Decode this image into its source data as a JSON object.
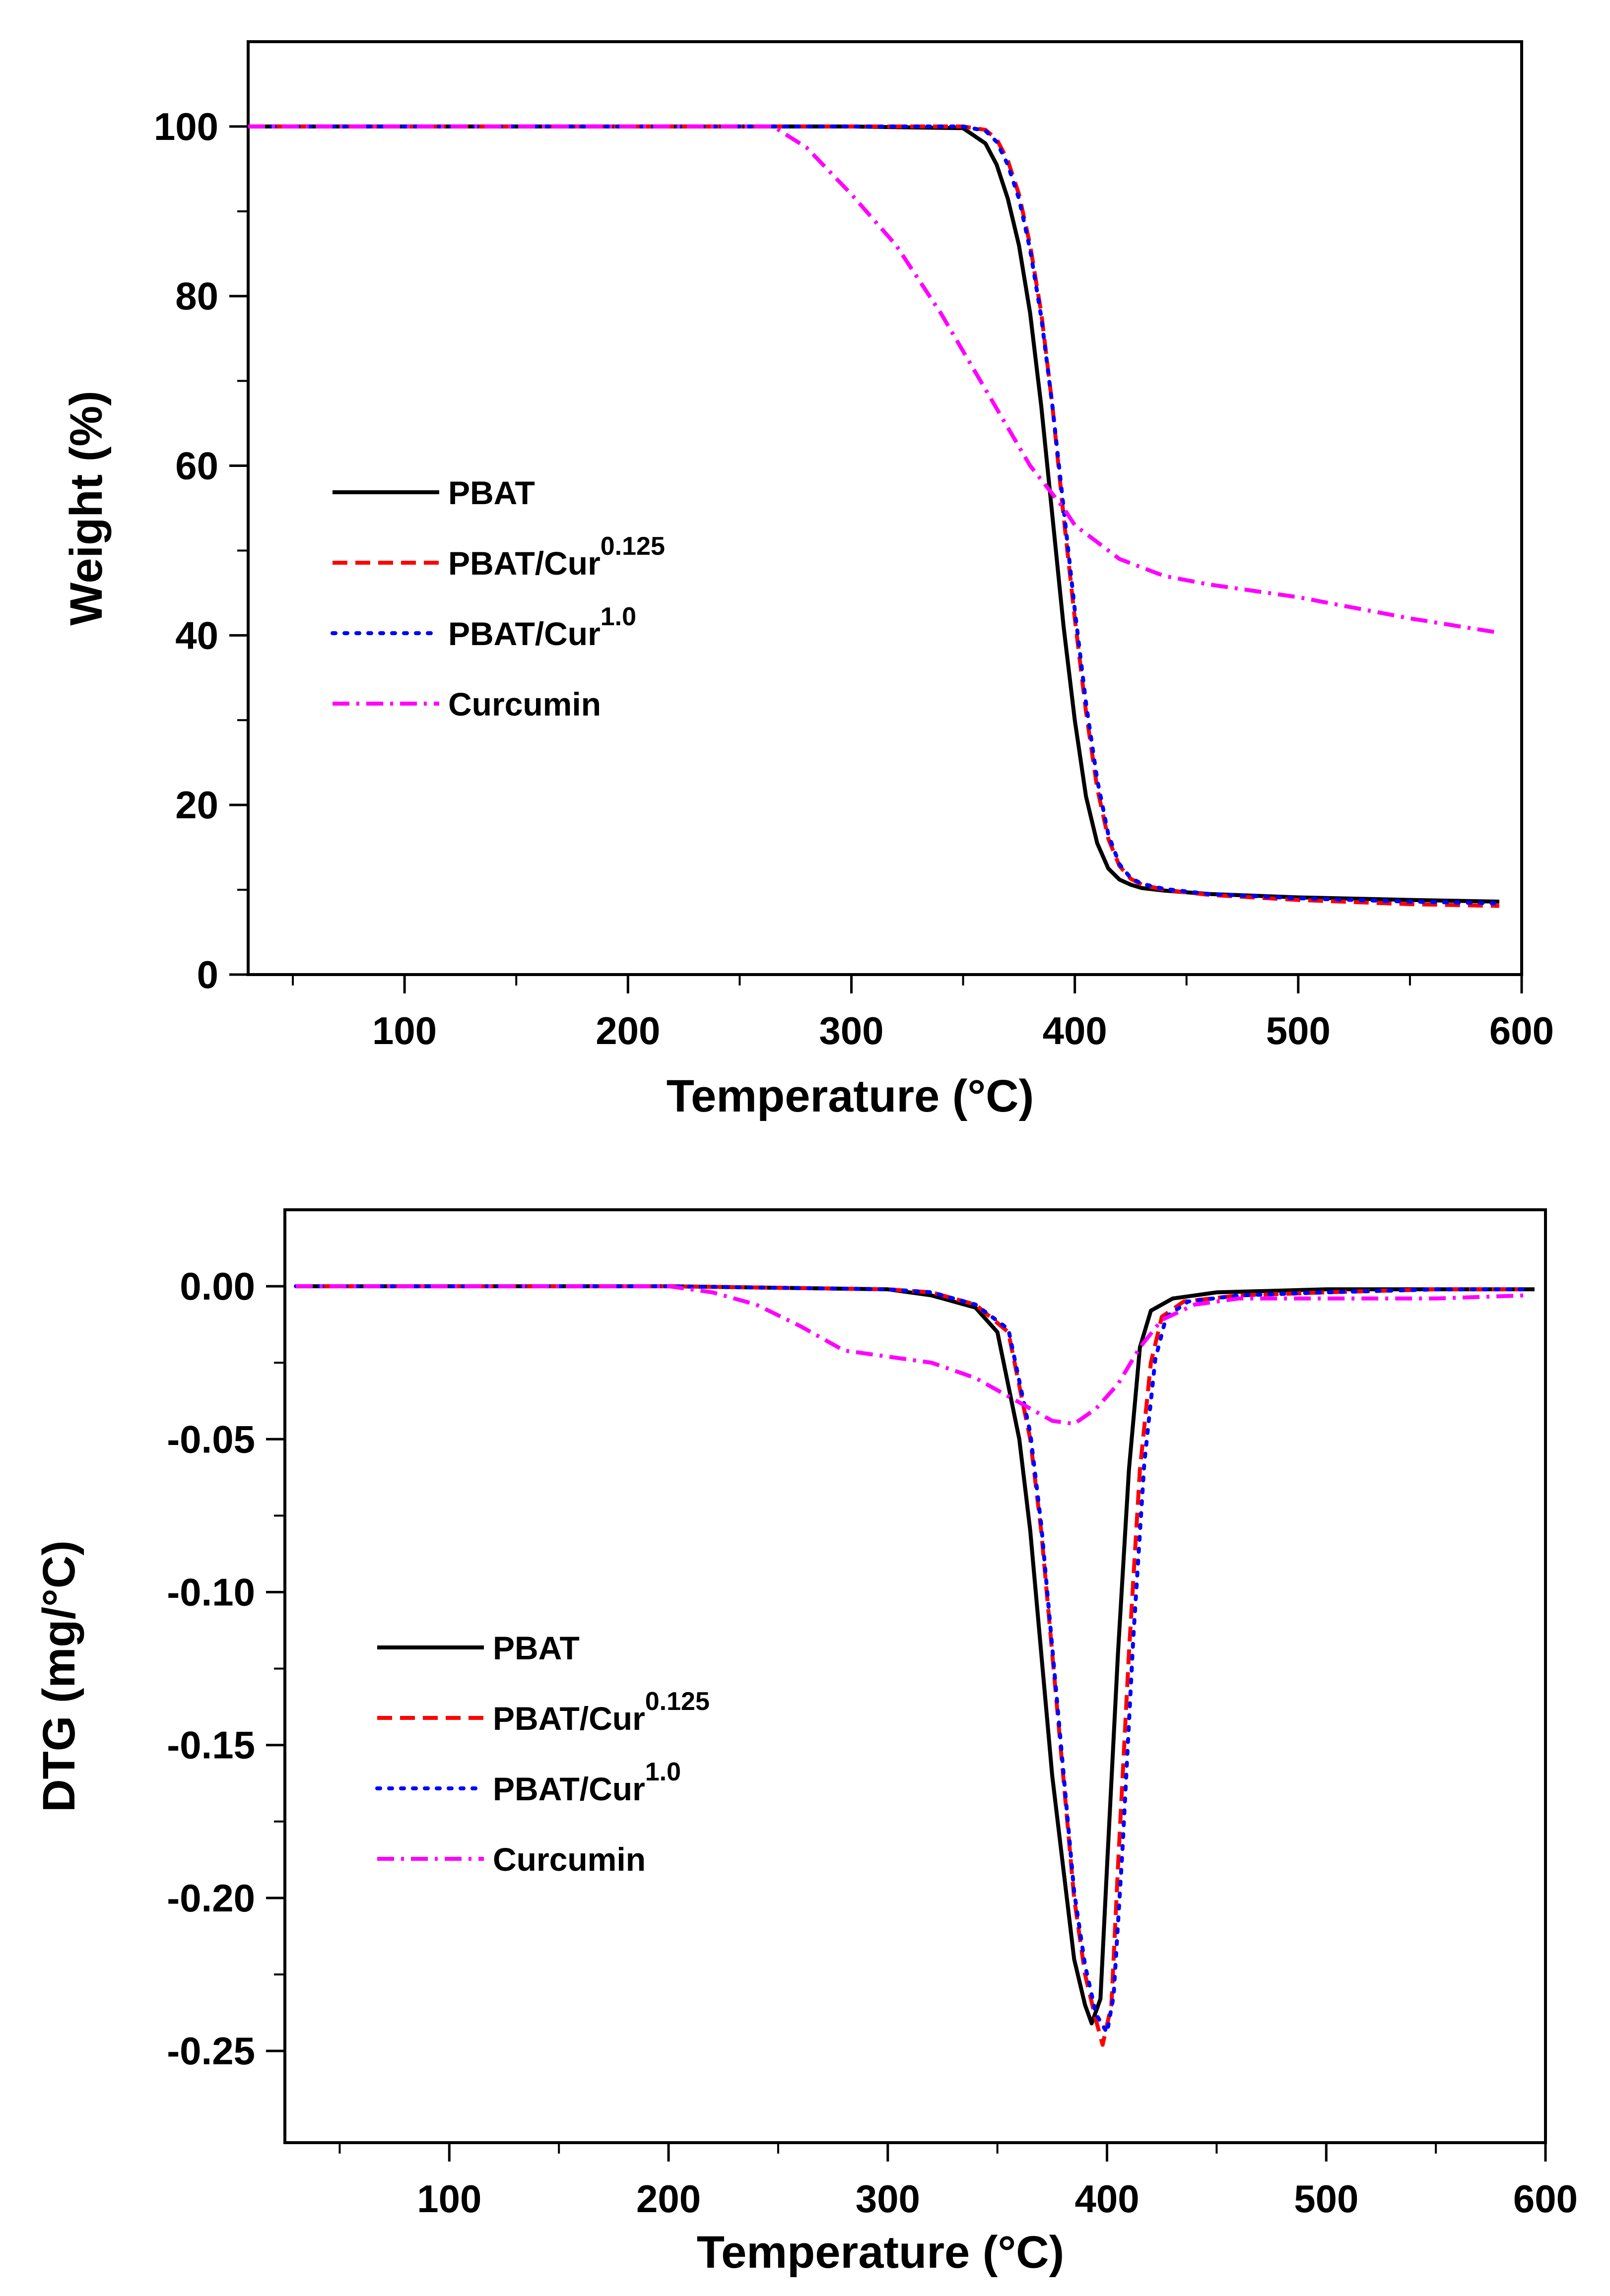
{
  "chart_data": [
    {
      "type": "line",
      "title": "",
      "xlabel": "Temperature (°C)",
      "ylabel": "Weight (%)",
      "xlim": [
        30,
        600
      ],
      "ylim": [
        0,
        110
      ],
      "xticks": [
        "100",
        "200",
        "300",
        "400",
        "500",
        "600"
      ],
      "yticks": [
        "0",
        "20",
        "40",
        "60",
        "80",
        "100"
      ],
      "grid": false,
      "legend_position": "center-left",
      "series": [
        {
          "name": "PBAT",
          "sup": "",
          "color": "#000000",
          "style": "solid",
          "x": [
            30,
            100,
            200,
            300,
            350,
            360,
            365,
            370,
            375,
            380,
            385,
            390,
            395,
            400,
            405,
            410,
            415,
            420,
            425,
            430,
            440,
            460,
            500,
            550,
            590
          ],
          "y": [
            100,
            100,
            100,
            100,
            99.8,
            98,
            95.5,
            91.5,
            86,
            78,
            67,
            54,
            41,
            30,
            21,
            15.5,
            12.5,
            11.2,
            10.6,
            10.2,
            9.9,
            9.5,
            9.1,
            8.8,
            8.6
          ]
        },
        {
          "name": "PBAT/Cur",
          "sup": "0.125",
          "color": "#ff0000",
          "style": "dashed",
          "x": [
            30,
            100,
            200,
            300,
            350,
            360,
            365,
            370,
            375,
            380,
            385,
            390,
            395,
            400,
            405,
            410,
            415,
            420,
            425,
            430,
            440,
            460,
            500,
            550,
            590
          ],
          "y": [
            100,
            100,
            100,
            100,
            100,
            99.6,
            98.5,
            96,
            92,
            86,
            78,
            67,
            54,
            42,
            31,
            22,
            16,
            12.8,
            11.3,
            10.6,
            10,
            9.4,
            8.8,
            8.3,
            8.1
          ]
        },
        {
          "name": "PBAT/Cur",
          "sup": "1.0",
          "color": "#0000ff",
          "style": "dotted",
          "x": [
            30,
            100,
            200,
            300,
            350,
            360,
            365,
            370,
            375,
            380,
            385,
            390,
            395,
            400,
            405,
            410,
            415,
            420,
            425,
            430,
            440,
            460,
            500,
            550,
            590
          ],
          "y": [
            100,
            100,
            100,
            100,
            100,
            99.5,
            98.2,
            95.5,
            91.5,
            85.5,
            77.5,
            67,
            55,
            43,
            32,
            23,
            16.5,
            13,
            11.4,
            10.7,
            10.1,
            9.5,
            9.0,
            8.6,
            8.4
          ]
        },
        {
          "name": "Curcumin",
          "sup": "",
          "color": "#ff00ff",
          "style": "dashdot",
          "x": [
            30,
            100,
            200,
            265,
            280,
            300,
            320,
            340,
            360,
            380,
            395,
            400,
            410,
            420,
            440,
            460,
            500,
            550,
            590
          ],
          "y": [
            100,
            100,
            100,
            100,
            97.5,
            92,
            86,
            78,
            69,
            60,
            55,
            53,
            51,
            49,
            47,
            46,
            44.5,
            42,
            40.3
          ]
        }
      ]
    },
    {
      "type": "line",
      "title": "",
      "xlabel": "Temperature (°C)",
      "ylabel": "DTG (mg/°C)",
      "xlim": [
        25,
        600
      ],
      "ylim": [
        -0.28,
        0.025
      ],
      "xticks": [
        "100",
        "200",
        "300",
        "400",
        "500",
        "600"
      ],
      "yticks": [
        "0.00",
        "-0.05",
        "-0.10",
        "-0.15",
        "-0.20",
        "-0.25"
      ],
      "grid": false,
      "legend_position": "center-left",
      "series": [
        {
          "name": "PBAT",
          "sup": "",
          "color": "#000000",
          "style": "solid",
          "x": [
            30,
            100,
            200,
            300,
            320,
            340,
            350,
            360,
            365,
            370,
            375,
            380,
            385,
            390,
            393,
            397,
            400,
            405,
            410,
            415,
            420,
            430,
            450,
            500,
            550,
            595
          ],
          "y": [
            0,
            0,
            0,
            -0.001,
            -0.003,
            -0.007,
            -0.015,
            -0.05,
            -0.08,
            -0.12,
            -0.16,
            -0.19,
            -0.22,
            -0.235,
            -0.241,
            -0.233,
            -0.19,
            -0.12,
            -0.06,
            -0.02,
            -0.008,
            -0.004,
            -0.002,
            -0.001,
            -0.001,
            -0.001
          ]
        },
        {
          "name": "PBAT/Cur",
          "sup": "0.125",
          "color": "#ff0000",
          "style": "dashed",
          "x": [
            30,
            100,
            200,
            300,
            320,
            340,
            355,
            365,
            370,
            375,
            380,
            385,
            390,
            395,
            398,
            402,
            405,
            410,
            415,
            420,
            425,
            435,
            460,
            500,
            550,
            590
          ],
          "y": [
            0,
            0,
            0,
            -0.001,
            -0.002,
            -0.006,
            -0.015,
            -0.05,
            -0.08,
            -0.12,
            -0.16,
            -0.2,
            -0.225,
            -0.24,
            -0.248,
            -0.235,
            -0.19,
            -0.12,
            -0.06,
            -0.025,
            -0.01,
            -0.005,
            -0.003,
            -0.002,
            -0.001,
            -0.001
          ]
        },
        {
          "name": "PBAT/Cur",
          "sup": "1.0",
          "color": "#0000ff",
          "style": "dotted",
          "x": [
            30,
            100,
            200,
            300,
            320,
            340,
            355,
            365,
            370,
            375,
            380,
            385,
            390,
            395,
            400,
            403,
            407,
            412,
            417,
            422,
            427,
            437,
            460,
            500,
            550,
            590
          ],
          "y": [
            0,
            0,
            0,
            -0.001,
            -0.002,
            -0.006,
            -0.014,
            -0.048,
            -0.078,
            -0.118,
            -0.158,
            -0.198,
            -0.222,
            -0.238,
            -0.244,
            -0.232,
            -0.185,
            -0.115,
            -0.058,
            -0.024,
            -0.01,
            -0.005,
            -0.003,
            -0.002,
            -0.001,
            -0.001
          ]
        },
        {
          "name": "Curcumin",
          "sup": "",
          "color": "#ff00ff",
          "style": "dashdot",
          "x": [
            30,
            100,
            200,
            220,
            240,
            260,
            280,
            300,
            320,
            340,
            360,
            375,
            385,
            395,
            405,
            415,
            425,
            440,
            460,
            500,
            550,
            590
          ],
          "y": [
            0,
            0,
            0,
            -0.002,
            -0.006,
            -0.013,
            -0.021,
            -0.023,
            -0.025,
            -0.03,
            -0.038,
            -0.044,
            -0.045,
            -0.04,
            -0.032,
            -0.02,
            -0.011,
            -0.006,
            -0.004,
            -0.004,
            -0.004,
            -0.003
          ]
        }
      ]
    }
  ]
}
